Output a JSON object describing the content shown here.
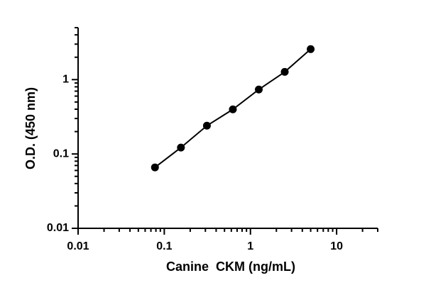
{
  "chart_data": {
    "type": "scatter",
    "x_label": "Canine  CKM (ng/mL)",
    "y_label": "O.D. (450 nm)",
    "log_x": true,
    "log_y": true,
    "color": "#000000",
    "connect": true,
    "x": [
      0.078,
      0.156,
      0.3125,
      0.625,
      1.25,
      2.5,
      5
    ],
    "values": [
      0.066,
      0.122,
      0.24,
      0.398,
      0.736,
      1.27,
      2.57
    ],
    "xlim": [
      0.01,
      30
    ],
    "ylim": [
      0.01,
      5
    ],
    "xticks": [
      0.01,
      0.1,
      1,
      10
    ],
    "yticks": [
      0.01,
      0.1,
      1
    ],
    "xminorticks": [
      0.02,
      0.03,
      0.04,
      0.05,
      0.06,
      0.07,
      0.08,
      0.09,
      0.2,
      0.3,
      0.4,
      0.5,
      0.6,
      0.7,
      0.8,
      0.9,
      2,
      3,
      4,
      5,
      6,
      7,
      8,
      9,
      20,
      30
    ],
    "yminorticks": [
      0.02,
      0.03,
      0.04,
      0.05,
      0.06,
      0.07,
      0.08,
      0.09,
      0.2,
      0.3,
      0.4,
      0.5,
      0.6,
      0.7,
      0.8,
      0.9,
      2,
      3,
      4,
      5
    ]
  }
}
